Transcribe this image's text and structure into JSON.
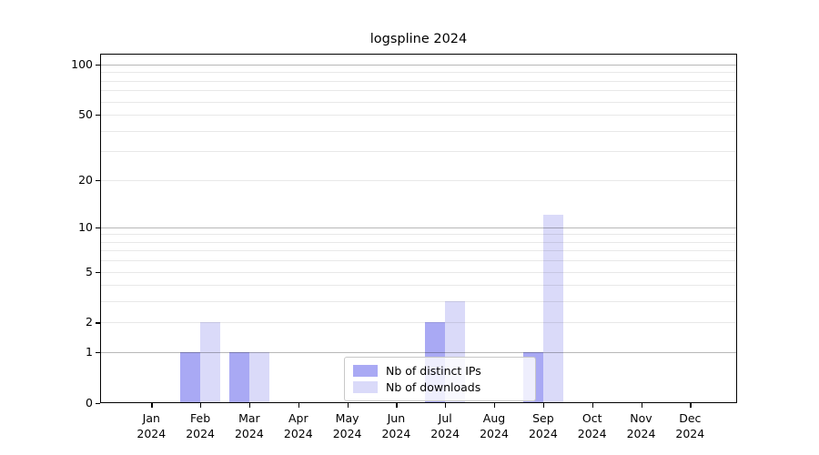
{
  "chart_data": {
    "type": "bar",
    "title": "logspline 2024",
    "year_label": "2024",
    "categories": [
      "Jan",
      "Feb",
      "Mar",
      "Apr",
      "May",
      "Jun",
      "Jul",
      "Aug",
      "Sep",
      "Oct",
      "Nov",
      "Dec"
    ],
    "series": [
      {
        "name": "Nb of distinct IPs",
        "color": "#a9a9f4",
        "values": [
          0,
          1,
          1,
          0,
          0,
          0,
          2,
          0,
          1,
          0,
          0,
          0
        ]
      },
      {
        "name": "Nb of downloads",
        "color": "#dadaf9",
        "values": [
          0,
          2,
          1,
          0,
          0,
          0,
          3,
          0,
          12,
          0,
          0,
          0
        ]
      }
    ],
    "yscale": "log1p",
    "ylim": [
      0,
      117
    ],
    "yticks": [
      0,
      1,
      2,
      5,
      10,
      20,
      50,
      100
    ],
    "gridlines": {
      "major": [
        1,
        10,
        100
      ],
      "minor": [
        2,
        3,
        4,
        5,
        6,
        7,
        8,
        9,
        20,
        30,
        40,
        50,
        60,
        70,
        80,
        90
      ]
    },
    "grid": true,
    "legend_position": "lower center",
    "xlabel": "",
    "ylabel": ""
  },
  "colors": {
    "major_grid": "#b3b3b3",
    "minor_grid": "#e8e8e8",
    "axis": "#000000",
    "legend_border": "#c8c8c8",
    "series_dark": "#a9a9f4",
    "series_light": "#dadaf9"
  }
}
